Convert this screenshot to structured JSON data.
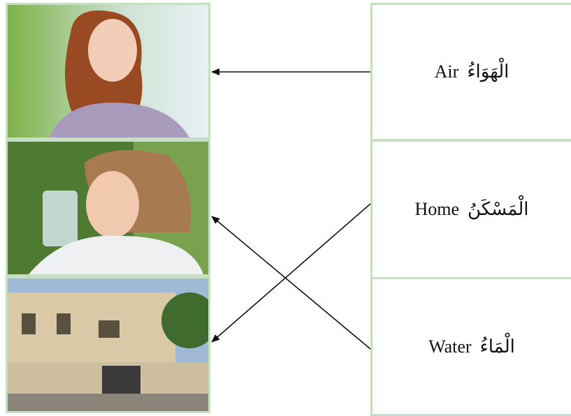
{
  "cards": [
    {
      "english": "Air",
      "arabic": "الْهَوَاءُ"
    },
    {
      "english": "Home",
      "arabic": "الْمَسْكَنُ"
    },
    {
      "english": "Water",
      "arabic": "الْمَاءُ"
    }
  ]
}
